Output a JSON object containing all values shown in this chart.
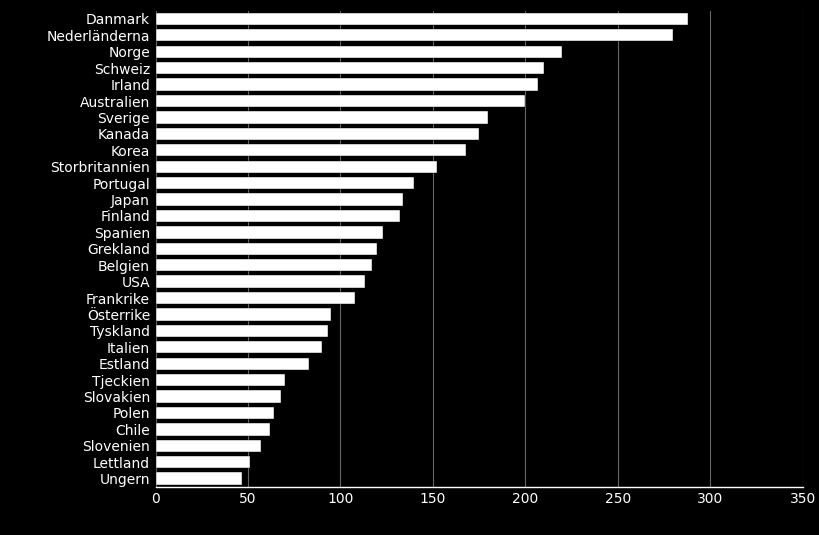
{
  "categories": [
    "Danmark",
    "Nederländerna",
    "Norge",
    "Schweiz",
    "Irland",
    "Australien",
    "Sverige",
    "Kanada",
    "Korea",
    "Storbritannien",
    "Portugal",
    "Japan",
    "Finland",
    "Spanien",
    "Grekland",
    "Belgien",
    "USA",
    "Frankrike",
    "Österrike",
    "Tyskland",
    "Italien",
    "Estland",
    "Tjeckien",
    "Slovakien",
    "Polen",
    "Chile",
    "Slovenien",
    "Lettland",
    "Ungern"
  ],
  "values": [
    288,
    280,
    220,
    210,
    207,
    200,
    180,
    175,
    168,
    152,
    140,
    134,
    132,
    123,
    120,
    117,
    113,
    108,
    95,
    93,
    90,
    83,
    70,
    68,
    64,
    62,
    57,
    51,
    47
  ],
  "bar_color": "#ffffff",
  "background_color": "#000000",
  "text_color": "#ffffff",
  "xlim": [
    0,
    350
  ],
  "xticks": [
    0,
    50,
    100,
    150,
    200,
    250,
    300,
    350
  ],
  "grid_color": "#666666",
  "tick_fontsize": 10,
  "label_fontsize": 10,
  "bar_height": 0.75
}
